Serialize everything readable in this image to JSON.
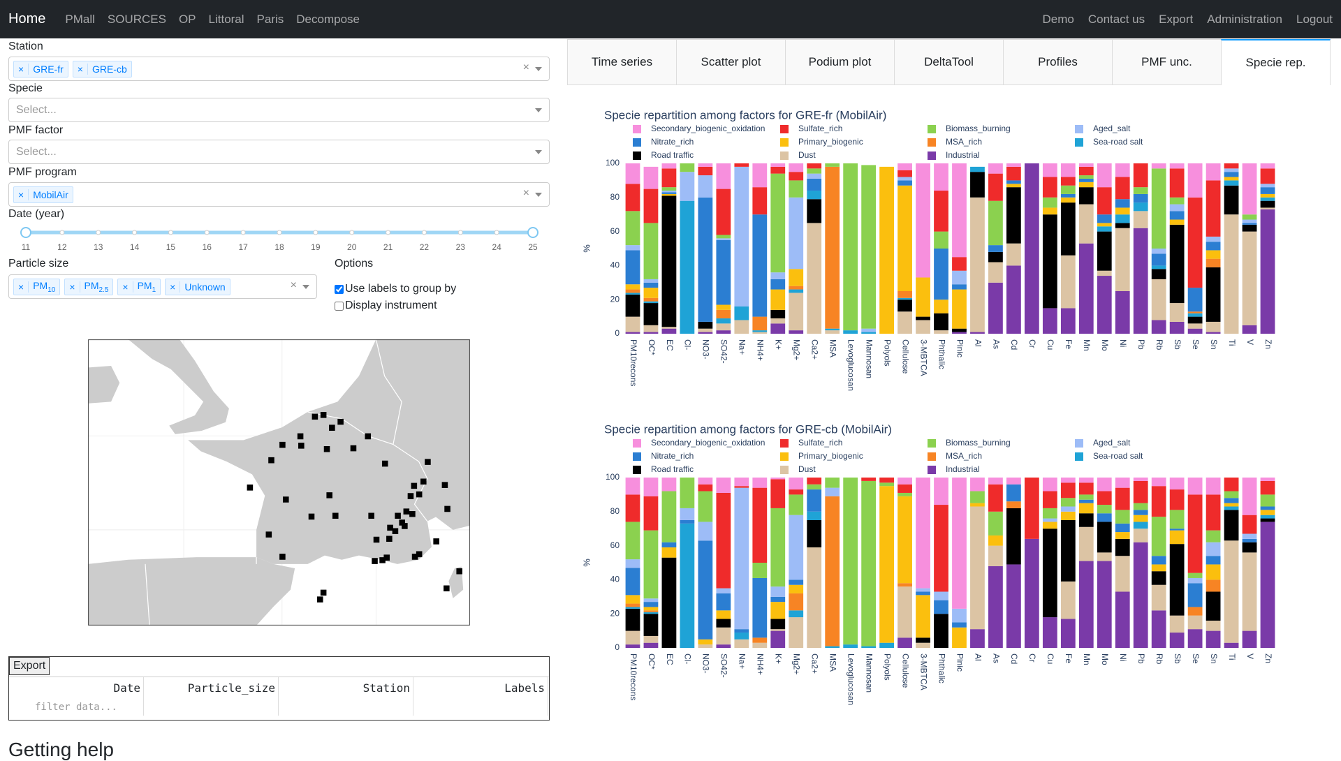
{
  "nav": {
    "brand": "Home",
    "links": [
      "PMall",
      "SOURCES",
      "OP",
      "Littoral",
      "Paris",
      "Decompose"
    ],
    "right_links": [
      "Demo",
      "Contact us",
      "Export",
      "Administration",
      "Logout"
    ]
  },
  "form": {
    "station_label": "Station",
    "stations": [
      "GRE-fr",
      "GRE-cb"
    ],
    "specie_label": "Specie",
    "specie_placeholder": "Select...",
    "factor_label": "PMF factor",
    "factor_placeholder": "Select...",
    "program_label": "PMF program",
    "programs": [
      "MobilAir"
    ],
    "date_label": "Date (year)",
    "date_ticks": [
      11,
      12,
      13,
      14,
      15,
      16,
      17,
      18,
      19,
      20,
      21,
      22,
      23,
      24,
      25
    ],
    "size_label": "Particle size",
    "sizes": [
      [
        "PM",
        "10"
      ],
      [
        "PM",
        "2.5"
      ],
      [
        "PM",
        "1"
      ],
      [
        "Unknown"
      ]
    ],
    "options_label": "Options",
    "options": [
      "Use labels to group by",
      "Display instrument"
    ]
  },
  "table": {
    "button": "Export",
    "columns": [
      "Date",
      "Particle_size",
      "Station",
      "Labels"
    ],
    "filter_placeholder": "filter data..."
  },
  "help_heading": "Getting help",
  "tabs": [
    "Time series",
    "Scatter plot",
    "Podium plot",
    "DeltaTool",
    "Profiles",
    "PMF unc.",
    "Specie rep."
  ],
  "chart_data": [
    {
      "type": "bar",
      "stacked": true,
      "title": "Specie repartition among factors for GRE-fr (MobilAir)",
      "ylabel": "%",
      "ylim": [
        0,
        100
      ],
      "yticks": [
        0,
        20,
        40,
        60,
        80,
        100
      ],
      "categories": [
        "PM10recons",
        "OC*",
        "EC",
        "Cl-",
        "NO3-",
        "SO42-",
        "Na+",
        "NH4+",
        "K+",
        "Mg2+",
        "Ca2+",
        "MSA",
        "Levoglucosan",
        "Mannosan",
        "Polyols",
        "Cellulose",
        "3-MBTCA",
        "Phthalic",
        "Pinic",
        "Al",
        "As",
        "Cd",
        "Cr",
        "Cu",
        "Fe",
        "Mn",
        "Mo",
        "Ni",
        "Pb",
        "Rb",
        "Sb",
        "Se",
        "Sn",
        "Ti",
        "V",
        "Zn"
      ],
      "series": [
        {
          "name": "Secondary_biogenic_oxidation",
          "color": "#f78fdd",
          "values": [
            12,
            13,
            3,
            0,
            2,
            15,
            0,
            14,
            2,
            5,
            0,
            0,
            0,
            0,
            0,
            4,
            67,
            16,
            55,
            0,
            6,
            2,
            0,
            8,
            8,
            2,
            14,
            8,
            0,
            3,
            3,
            20,
            10,
            0,
            30,
            3
          ]
        },
        {
          "name": "Sulfate_rich",
          "color": "#ef2b2b",
          "values": [
            16,
            20,
            11,
            0,
            5,
            27,
            2,
            16,
            4,
            5,
            3,
            0,
            0,
            0,
            0,
            4,
            0,
            24,
            8,
            0,
            16,
            8,
            0,
            12,
            5,
            5,
            16,
            13,
            14,
            0,
            17,
            53,
            33,
            3,
            0,
            9
          ]
        },
        {
          "name": "Biomass_burning",
          "color": "#8bd14f",
          "values": [
            20,
            33,
            2,
            5,
            0,
            2,
            0,
            0,
            58,
            10,
            3,
            2,
            98,
            96,
            0,
            0,
            0,
            10,
            0,
            0,
            26,
            0,
            0,
            6,
            5,
            2,
            0,
            0,
            4,
            47,
            4,
            0,
            0,
            0,
            3,
            0
          ]
        },
        {
          "name": "Aged_salt",
          "color": "#9dbcf7",
          "values": [
            3,
            2,
            1,
            17,
            13,
            1,
            82,
            0,
            4,
            42,
            3,
            0,
            0,
            2,
            0,
            2,
            0,
            0,
            8,
            0,
            0,
            0,
            0,
            0,
            0,
            0,
            0,
            0,
            0,
            3,
            4,
            0,
            3,
            2,
            2,
            2
          ]
        },
        {
          "name": "Nitrate_rich",
          "color": "#2b7ed2",
          "values": [
            20,
            3,
            1,
            0,
            73,
            38,
            0,
            60,
            6,
            0,
            7,
            0,
            0,
            0,
            0,
            3,
            0,
            30,
            3,
            0,
            4,
            2,
            0,
            0,
            2,
            2,
            5,
            5,
            5,
            7,
            5,
            14,
            5,
            3,
            1,
            4
          ]
        },
        {
          "name": "Primary_biogenic",
          "color": "#fbbf0e",
          "values": [
            3,
            6,
            1,
            0,
            0,
            3,
            0,
            0,
            12,
            10,
            0,
            0,
            0,
            0,
            98,
            62,
            23,
            8,
            23,
            0,
            0,
            2,
            0,
            4,
            3,
            3,
            2,
            4,
            0,
            0,
            3,
            0,
            5,
            2,
            0,
            2
          ]
        },
        {
          "name": "MSA_rich",
          "color": "#f78424",
          "values": [
            2,
            2,
            0,
            0,
            0,
            5,
            0,
            8,
            0,
            2,
            0,
            95,
            0,
            0,
            0,
            4,
            0,
            0,
            0,
            0,
            0,
            0,
            0,
            0,
            0,
            0,
            0,
            0,
            0,
            0,
            0,
            1,
            5,
            0,
            0,
            0
          ]
        },
        {
          "name": "Sea-road salt",
          "color": "#1fa3d6",
          "values": [
            1,
            1,
            0,
            78,
            0,
            3,
            8,
            1,
            0,
            2,
            5,
            1,
            2,
            1,
            0,
            1,
            0,
            0,
            0,
            3,
            0,
            0,
            0,
            0,
            0,
            0,
            3,
            5,
            5,
            2,
            0,
            2,
            0,
            3,
            0,
            2
          ]
        },
        {
          "name": "Road traffic",
          "color": "#000000",
          "values": [
            13,
            13,
            77,
            0,
            4,
            0,
            0,
            0,
            5,
            0,
            14,
            0,
            0,
            0,
            0,
            7,
            2,
            10,
            2,
            15,
            6,
            33,
            0,
            55,
            31,
            10,
            23,
            3,
            0,
            6,
            46,
            4,
            32,
            17,
            4,
            4
          ]
        },
        {
          "name": "Dust",
          "color": "#dcc4a4",
          "values": [
            9,
            4,
            1,
            0,
            2,
            4,
            8,
            1,
            3,
            22,
            65,
            2,
            0,
            0,
            0,
            13,
            8,
            2,
            0,
            79,
            12,
            13,
            0,
            0,
            31,
            23,
            3,
            37,
            10,
            24,
            11,
            3,
            6,
            70,
            55,
            1
          ]
        },
        {
          "name": "Industrial",
          "color": "#7a3aa8",
          "values": [
            1,
            1,
            3,
            0,
            1,
            2,
            0,
            0,
            6,
            2,
            0,
            0,
            0,
            0,
            0,
            0,
            0,
            0,
            1,
            1,
            30,
            40,
            100,
            15,
            15,
            53,
            34,
            25,
            62,
            8,
            7,
            3,
            1,
            0,
            5,
            73
          ]
        }
      ]
    },
    {
      "type": "bar",
      "stacked": true,
      "title": "Specie repartition among factors for GRE-cb (MobilAir)",
      "ylabel": "%",
      "ylim": [
        0,
        100
      ],
      "yticks": [
        0,
        20,
        40,
        60,
        80,
        100
      ],
      "categories": [
        "PM10recons",
        "OC*",
        "EC",
        "Cl-",
        "NO3-",
        "SO42-",
        "Na+",
        "NH4+",
        "K+",
        "Mg2+",
        "Ca2+",
        "MSA",
        "Levoglucosan",
        "Mannosan",
        "Polyols",
        "Cellulose",
        "3-MBTCA",
        "Phthalic",
        "Pinic",
        "Al",
        "As",
        "Cd",
        "Cr",
        "Cu",
        "Fe",
        "Mn",
        "Mo",
        "Ni",
        "Pb",
        "Rb",
        "Sb",
        "Se",
        "Sn",
        "Ti",
        "V",
        "Zn"
      ],
      "series": [
        {
          "name": "Secondary_biogenic_oxidation",
          "color": "#f78fdd",
          "values": [
            10,
            11,
            8,
            0,
            4,
            9,
            5,
            6,
            1,
            7,
            0,
            0,
            0,
            0,
            0,
            4,
            65,
            16,
            77,
            8,
            4,
            4,
            0,
            8,
            3,
            3,
            8,
            6,
            2,
            5,
            7,
            10,
            10,
            0,
            22,
            2
          ]
        },
        {
          "name": "Sulfate_rich",
          "color": "#ef2b2b",
          "values": [
            16,
            20,
            0,
            0,
            4,
            56,
            1,
            44,
            17,
            3,
            4,
            0,
            0,
            2,
            3,
            5,
            0,
            51,
            0,
            0,
            16,
            0,
            36,
            10,
            9,
            7,
            8,
            13,
            13,
            18,
            12,
            46,
            21,
            8,
            11,
            8
          ]
        },
        {
          "name": "Biomass_burning",
          "color": "#8bd14f",
          "values": [
            22,
            40,
            30,
            18,
            18,
            0,
            0,
            9,
            46,
            12,
            3,
            6,
            98,
            97,
            2,
            2,
            0,
            0,
            0,
            7,
            14,
            0,
            0,
            6,
            5,
            3,
            5,
            8,
            4,
            23,
            11,
            3,
            7,
            4,
            0,
            7
          ]
        },
        {
          "name": "Aged_salt",
          "color": "#9dbcf7",
          "values": [
            5,
            2,
            0,
            7,
            11,
            3,
            83,
            0,
            6,
            38,
            0,
            5,
            0,
            0,
            0,
            0,
            2,
            5,
            8,
            0,
            0,
            0,
            0,
            2,
            3,
            0,
            0,
            0,
            0,
            0,
            0,
            3,
            8,
            0,
            3,
            0
          ]
        },
        {
          "name": "Nitrate_rich",
          "color": "#2b7ed2",
          "values": [
            16,
            3,
            3,
            2,
            58,
            10,
            2,
            35,
            3,
            3,
            13,
            0,
            0,
            0,
            0,
            0,
            2,
            8,
            3,
            0,
            0,
            10,
            0,
            0,
            0,
            2,
            5,
            5,
            3,
            5,
            1,
            14,
            5,
            3,
            2,
            2
          ]
        },
        {
          "name": "Primary_biogenic",
          "color": "#fbbf0e",
          "values": [
            5,
            2,
            6,
            0,
            3,
            5,
            0,
            0,
            10,
            5,
            0,
            0,
            0,
            0,
            92,
            51,
            25,
            0,
            12,
            2,
            6,
            0,
            0,
            4,
            5,
            6,
            0,
            4,
            4,
            4,
            8,
            0,
            9,
            2,
            0,
            3
          ]
        },
        {
          "name": "MSA_rich",
          "color": "#f78424",
          "values": [
            2,
            1,
            0,
            0,
            0,
            0,
            0,
            3,
            0,
            10,
            0,
            88,
            0,
            0,
            0,
            2,
            0,
            0,
            0,
            0,
            0,
            4,
            0,
            0,
            0,
            0,
            0,
            0,
            0,
            0,
            0,
            5,
            7,
            0,
            0,
            0
          ]
        },
        {
          "name": "Sea-road salt",
          "color": "#1fa3d6",
          "values": [
            1,
            1,
            0,
            73,
            0,
            0,
            4,
            0,
            0,
            4,
            5,
            1,
            2,
            1,
            3,
            0,
            0,
            0,
            0,
            0,
            0,
            0,
            0,
            0,
            0,
            0,
            0,
            0,
            4,
            0,
            0,
            0,
            0,
            2,
            0,
            2
          ]
        },
        {
          "name": "Road traffic",
          "color": "#000000",
          "values": [
            13,
            13,
            53,
            0,
            0,
            5,
            0,
            0,
            6,
            0,
            16,
            0,
            0,
            0,
            0,
            0,
            3,
            20,
            0,
            0,
            0,
            33,
            0,
            52,
            36,
            8,
            18,
            10,
            0,
            8,
            42,
            0,
            17,
            18,
            6,
            2
          ]
        },
        {
          "name": "Dust",
          "color": "#dcc4a4",
          "values": [
            8,
            4,
            0,
            0,
            2,
            10,
            5,
            3,
            1,
            18,
            59,
            0,
            0,
            0,
            0,
            30,
            3,
            0,
            0,
            72,
            12,
            0,
            0,
            0,
            22,
            20,
            5,
            21,
            8,
            15,
            10,
            8,
            6,
            60,
            46,
            0
          ]
        },
        {
          "name": "Industrial",
          "color": "#7a3aa8",
          "values": [
            2,
            3,
            0,
            0,
            0,
            2,
            0,
            0,
            10,
            0,
            0,
            0,
            0,
            0,
            0,
            6,
            0,
            0,
            0,
            11,
            48,
            49,
            64,
            18,
            17,
            51,
            51,
            33,
            62,
            22,
            9,
            11,
            10,
            3,
            10,
            74
          ]
        }
      ]
    }
  ]
}
